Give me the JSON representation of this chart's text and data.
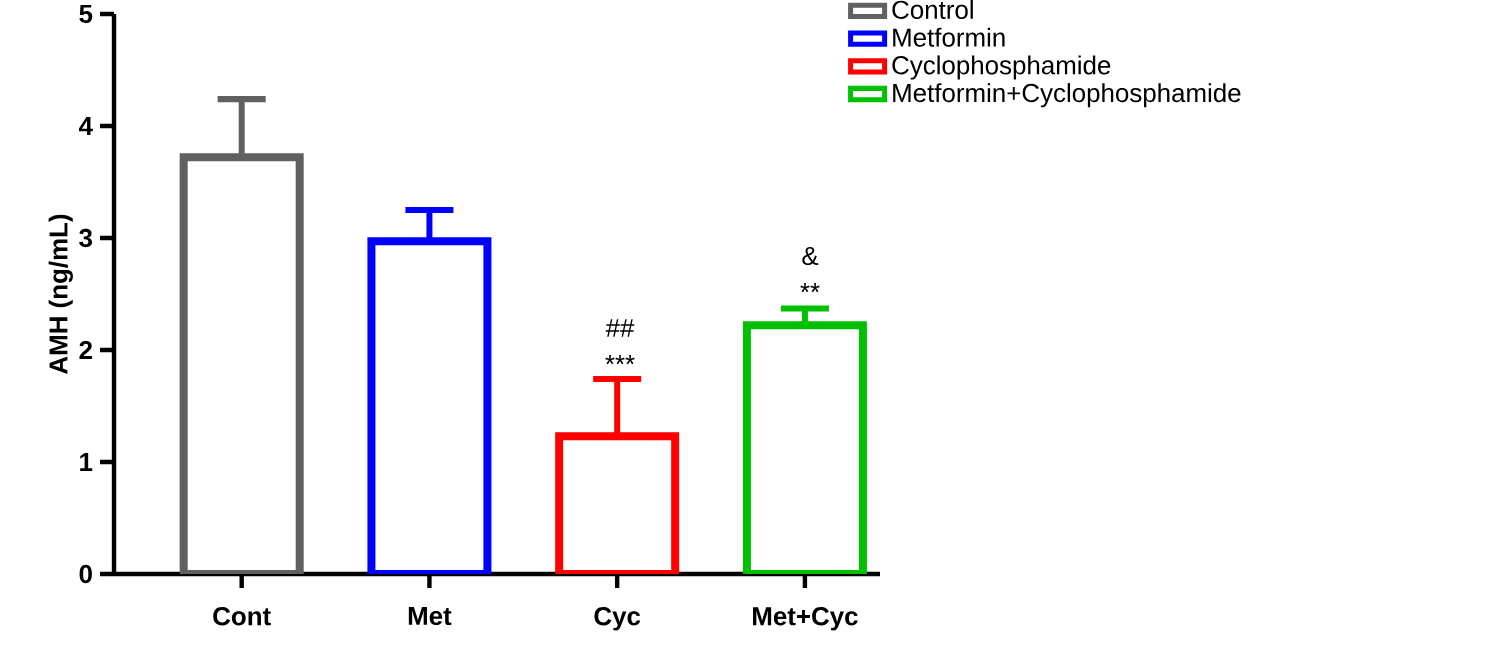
{
  "chart_data": {
    "type": "bar",
    "ylabel": "AMH (ng/mL)",
    "categories": [
      "Cont",
      "Met",
      "Cyc",
      "Met+Cyc"
    ],
    "series": [
      {
        "name": "Control",
        "color": "#606060",
        "values": [
          3.72,
          null,
          null,
          null
        ],
        "errors": [
          0.52,
          null,
          null,
          null
        ]
      },
      {
        "name": "Metformin",
        "color": "#0000ff",
        "values": [
          null,
          2.97,
          null,
          null
        ],
        "errors": [
          null,
          0.28,
          null,
          null
        ]
      },
      {
        "name": "Cyclophosphamide",
        "color": "#ff0000",
        "values": [
          null,
          null,
          1.23,
          null
        ],
        "errors": [
          null,
          null,
          0.51,
          null
        ]
      },
      {
        "name": "Metformin+Cyclophosphamide",
        "color": "#00c000",
        "values": [
          null,
          null,
          null,
          2.22
        ],
        "errors": [
          null,
          null,
          null,
          0.15
        ]
      }
    ],
    "ylim": [
      0,
      5
    ],
    "yticks": [
      0,
      1,
      2,
      3,
      4,
      5
    ],
    "legend": "top right",
    "annotations": [
      "***",
      "##",
      "**",
      "&"
    ]
  }
}
